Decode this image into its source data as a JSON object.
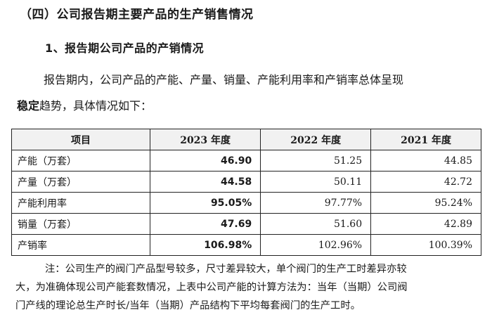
{
  "heading": {
    "section": "（四）公司报告期主要产品的生产销售情况",
    "subsection": "1、报告期公司产品的产销情况"
  },
  "intro": {
    "line1": "报告期内，公司产品的产能、产量、销量、产能利用率和产销率总体呈现",
    "line2_bold": "稳定",
    "line2_rest": "趋势，具体情况如下："
  },
  "table": {
    "headers": [
      "项目",
      "2023 年度",
      "2022 年度",
      "2021 年度"
    ],
    "rows": [
      {
        "label": "产能（万套）",
        "y2023": "46.90",
        "y2022": "51.25",
        "y2021": "44.85"
      },
      {
        "label": "产量（万套）",
        "y2023": "44.58",
        "y2022": "50.11",
        "y2021": "42.72"
      },
      {
        "label": "产能利用率",
        "y2023": "95.05%",
        "y2022": "97.77%",
        "y2021": "95.24%"
      },
      {
        "label": "销量（万套）",
        "y2023": "47.69",
        "y2022": "51.60",
        "y2021": "42.89"
      },
      {
        "label": "产销率",
        "y2023": "106.98%",
        "y2022": "102.96%",
        "y2021": "100.39%"
      }
    ]
  },
  "note": {
    "line1": "注：公司生产的阀门产品型号较多，尺寸差异较大，单个阀门的生产工时差异亦较",
    "line2": "大，为准确体现公司产能套数情况，上表中公司产能的计算方法为：当年（当期）公司阀",
    "line3": "门产线的理论总生产时长/当年（当期）产品结构下平均每套阀门的生产工时。"
  }
}
